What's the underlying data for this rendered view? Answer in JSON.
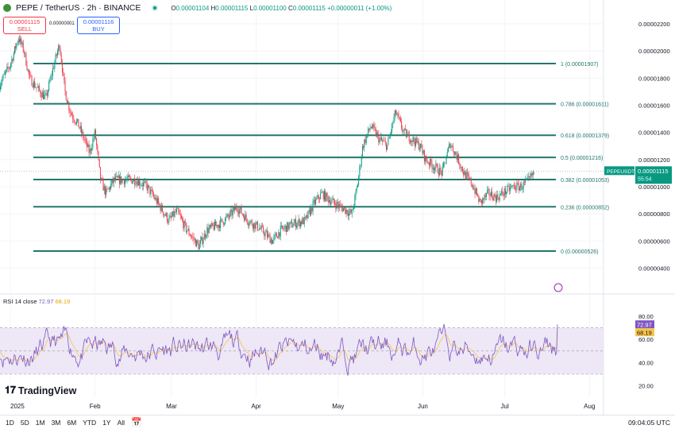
{
  "header": {
    "symbol": "PEPE / TetherUS · 2h · BINANCE",
    "o_label": "O",
    "o": "0.00001104",
    "h_label": "H",
    "h": "0.00001115",
    "l_label": "L",
    "l": "0.00001100",
    "c_label": "C",
    "c": "0.00001115",
    "change": "+0.00000011 (+1.00%)"
  },
  "trade": {
    "sell_price": "0.00001115",
    "sell_label": "SELL",
    "spread": "0.00000001",
    "buy_price": "0.00001116",
    "buy_label": "BUY"
  },
  "colors": {
    "up": "#089981",
    "down": "#f23645",
    "fib": "#22776b",
    "rsi": "#7e57c2",
    "rsi_ma": "#f7c548",
    "rsi_band": "#ede7f6"
  },
  "chart_data": {
    "type": "candlestick",
    "price_axis": {
      "ticks": [
        "0.00002200",
        "0.00002000",
        "0.00001800",
        "0.00001600",
        "0.00001400",
        "0.00001200",
        "0.00001000",
        "0.00000800",
        "0.00000600",
        "0.00000400"
      ],
      "range": [
        3.7e-06,
        2.29e-05
      ]
    },
    "time_axis": {
      "ticks": [
        {
          "label": "2025",
          "date": "2025-01-01"
        },
        {
          "label": "Feb",
          "date": "2025-02-01"
        },
        {
          "label": "Mar",
          "date": "2025-03-01"
        },
        {
          "label": "Apr",
          "date": "2025-04-01"
        },
        {
          "label": "May",
          "date": "2025-05-01"
        },
        {
          "label": "Jun",
          "date": "2025-06-01"
        },
        {
          "label": "Jul",
          "date": "2025-07-01"
        },
        {
          "label": "Aug",
          "date": "2025-08-01"
        }
      ]
    },
    "close_path": [
      [
        "2024-12-28",
        17.5
      ],
      [
        "2025-01-01",
        19
      ],
      [
        "2025-01-04",
        21
      ],
      [
        "2025-01-06",
        20
      ],
      [
        "2025-01-08",
        18
      ],
      [
        "2025-01-11",
        17.2
      ],
      [
        "2025-01-14",
        16.5
      ],
      [
        "2025-01-17",
        19
      ],
      [
        "2025-01-19",
        20.5
      ],
      [
        "2025-01-21",
        17
      ],
      [
        "2025-01-23",
        15.5
      ],
      [
        "2025-01-26",
        14.5
      ],
      [
        "2025-01-28",
        13.5
      ],
      [
        "2025-01-30",
        12.5
      ],
      [
        "2025-02-01",
        14
      ],
      [
        "2025-02-03",
        10.5
      ],
      [
        "2025-02-05",
        9.5
      ],
      [
        "2025-02-08",
        10.5
      ],
      [
        "2025-02-12",
        10.5
      ],
      [
        "2025-02-16",
        10.5
      ],
      [
        "2025-02-20",
        10
      ],
      [
        "2025-02-24",
        8.8
      ],
      [
        "2025-02-28",
        7.5
      ],
      [
        "2025-03-03",
        8.2
      ],
      [
        "2025-03-06",
        7
      ],
      [
        "2025-03-11",
        5.6
      ],
      [
        "2025-03-14",
        6.8
      ],
      [
        "2025-03-18",
        7.2
      ],
      [
        "2025-03-22",
        7.8
      ],
      [
        "2025-03-25",
        8.5
      ],
      [
        "2025-03-29",
        7.5
      ],
      [
        "2025-04-02",
        7
      ],
      [
        "2025-04-07",
        6
      ],
      [
        "2025-04-10",
        6.8
      ],
      [
        "2025-04-15",
        7.3
      ],
      [
        "2025-04-19",
        7.5
      ],
      [
        "2025-04-22",
        8.7
      ],
      [
        "2025-04-25",
        9.5
      ],
      [
        "2025-04-28",
        9
      ],
      [
        "2025-05-02",
        8.5
      ],
      [
        "2025-05-06",
        8
      ],
      [
        "2025-05-08",
        10
      ],
      [
        "2025-05-10",
        13
      ],
      [
        "2025-05-13",
        14.5
      ],
      [
        "2025-05-16",
        13.5
      ],
      [
        "2025-05-19",
        13
      ],
      [
        "2025-05-22",
        15.5
      ],
      [
        "2025-05-25",
        14
      ],
      [
        "2025-05-28",
        13.5
      ],
      [
        "2025-05-31",
        13
      ],
      [
        "2025-06-02",
        12
      ],
      [
        "2025-06-05",
        11.5
      ],
      [
        "2025-06-08",
        11
      ],
      [
        "2025-06-11",
        13.2
      ],
      [
        "2025-06-14",
        12
      ],
      [
        "2025-06-16",
        11
      ],
      [
        "2025-06-19",
        10.2
      ],
      [
        "2025-06-22",
        8.8
      ],
      [
        "2025-06-25",
        9.5
      ],
      [
        "2025-06-28",
        9.2
      ],
      [
        "2025-07-01",
        9.6
      ],
      [
        "2025-07-04",
        10
      ],
      [
        "2025-07-07",
        10
      ],
      [
        "2025-07-10",
        10.5
      ],
      [
        "2025-07-12",
        11.15
      ]
    ],
    "fib_levels": [
      {
        "ratio": "1",
        "label": "1 (0.00001907)",
        "price": 19.07
      },
      {
        "ratio": "0.786",
        "label": "0.786 (0.00001611)",
        "price": 16.11
      },
      {
        "ratio": "0.618",
        "label": "0.618 (0.00001379)",
        "price": 13.79
      },
      {
        "ratio": "0.5",
        "label": "0.5 (0.00001216)",
        "price": 12.16
      },
      {
        "ratio": "0.382",
        "label": "0.382 (0.00001053)",
        "price": 10.53
      },
      {
        "ratio": "0.236",
        "label": "0.236 (0.00000852)",
        "price": 8.52
      },
      {
        "ratio": "0",
        "label": "0 (0.00000526)",
        "price": 5.26
      }
    ],
    "last_price": {
      "symbol": "PEPEUSDT",
      "price": "0.00001115",
      "countdown": "55:54"
    },
    "rsi": {
      "label": "RSI 14 close",
      "value": "72.97",
      "ma": "68.19",
      "ticks": [
        "80.00",
        "60.00",
        "40.00",
        "20.00"
      ],
      "bands": [
        30,
        70
      ]
    }
  },
  "brand": "TradingView",
  "bottom": {
    "ranges": [
      "1D",
      "5D",
      "1M",
      "3M",
      "6M",
      "YTD",
      "1Y",
      "All"
    ],
    "time": "09:04:05 UTC"
  }
}
